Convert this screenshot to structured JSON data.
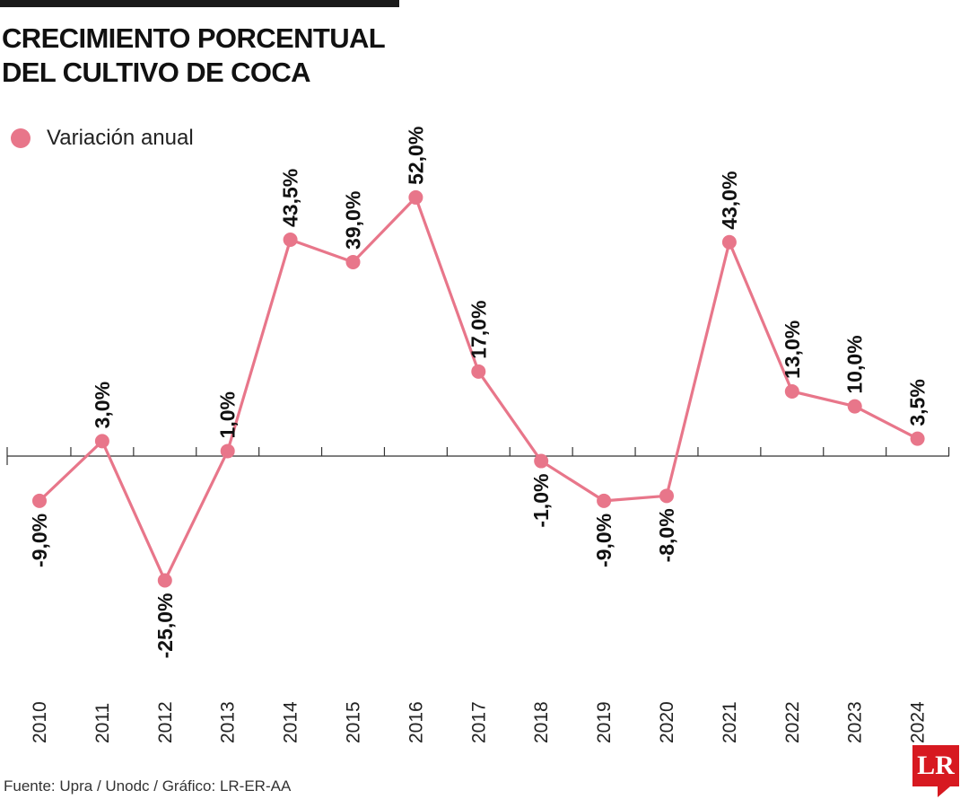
{
  "title_line1": "CRECIMIENTO PORCENTUAL",
  "title_line2": "DEL CULTIVO DE COCA",
  "legend_label": "Variación anual",
  "source": "Fuente:  Upra / Unodc / Gráfico: LR-ER-AA",
  "logo_text": "LR",
  "colors": {
    "series": "#e8768a",
    "axis": "#333333",
    "logo": "#d71920"
  },
  "chart_data": {
    "type": "line",
    "title": "CRECIMIENTO PORCENTUAL DEL CULTIVO DE COCA",
    "xlabel": "",
    "ylabel": "",
    "ylim": [
      -25,
      52
    ],
    "grid": false,
    "legend_position": "top-left",
    "categories": [
      "2010",
      "2011",
      "2012",
      "2013",
      "2014",
      "2015",
      "2016",
      "2017",
      "2018",
      "2019",
      "2020",
      "2021",
      "2022",
      "2023",
      "2024"
    ],
    "series": [
      {
        "name": "Variación anual",
        "values": [
          -9.0,
          3.0,
          -25.0,
          1.0,
          43.5,
          39.0,
          52.0,
          17.0,
          -1.0,
          -9.0,
          -8.0,
          43.0,
          13.0,
          10.0,
          3.5
        ],
        "labels": [
          "-9,0%",
          "3,0%",
          "-25,0%",
          "1,0%",
          "43,5%",
          "39,0%",
          "52,0%",
          "17,0%",
          "-1,0%",
          "-9,0%",
          "-8,0%",
          "43,0%",
          "13,0%",
          "10,0%",
          "3,5%"
        ]
      }
    ]
  }
}
